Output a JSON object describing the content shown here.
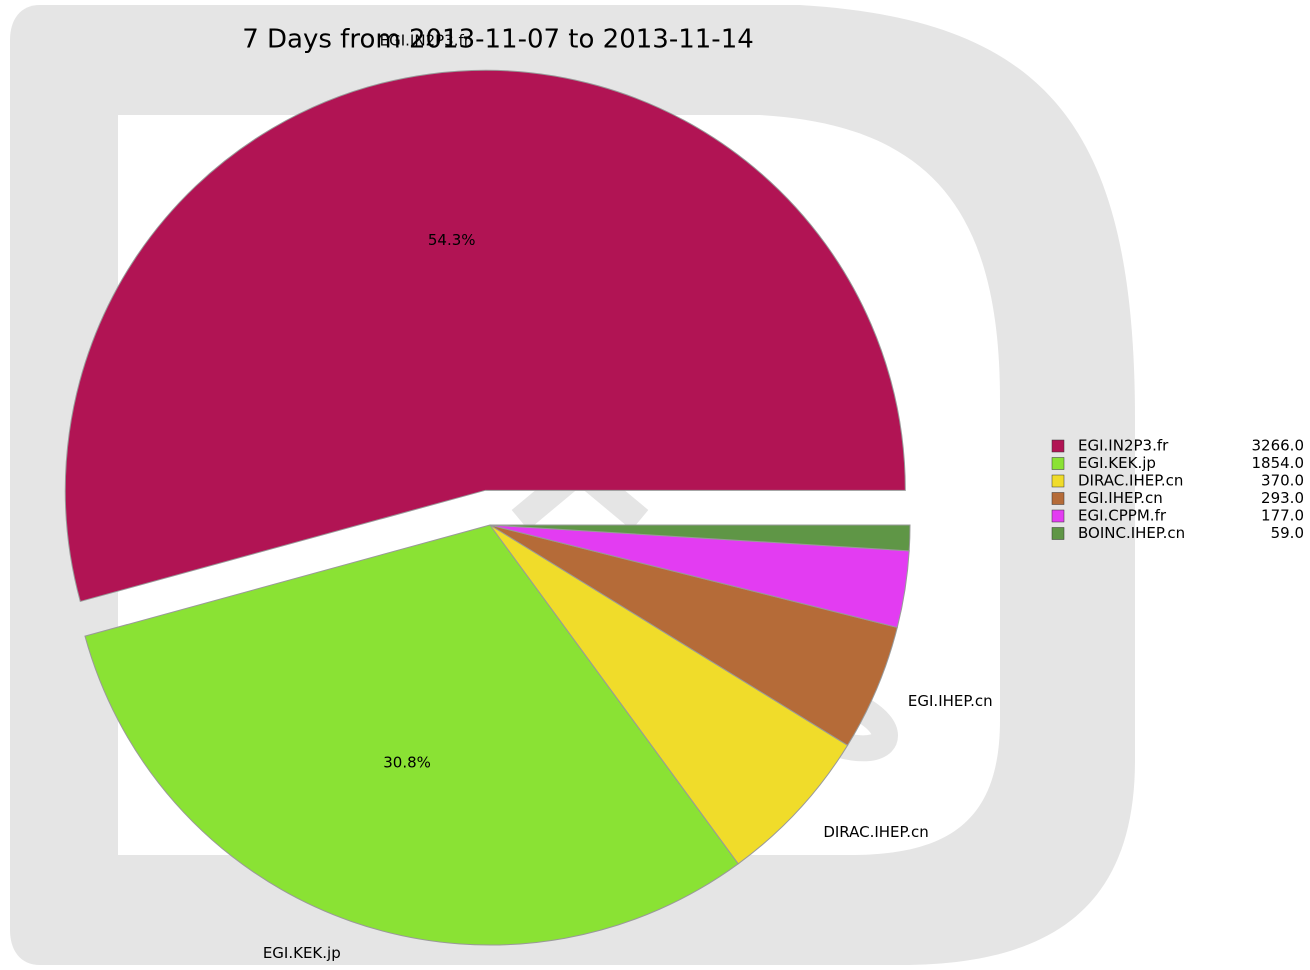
{
  "chart_data": {
    "type": "pie",
    "subtitle": "7 Days from 2013-11-07 to 2013-11-14",
    "categories": [
      "EGI.IN2P3.fr",
      "EGI.KEK.jp",
      "DIRAC.IHEP.cn",
      "EGI.IHEP.cn",
      "EGI.CPPM.fr",
      "BOINC.IHEP.cn"
    ],
    "values": [
      3266,
      1854,
      370,
      293,
      177,
      59
    ],
    "value_labels": [
      "3266.0",
      "1854.0",
      "370.0",
      "293.0",
      "177.0",
      "59.0"
    ],
    "percent_labels": [
      "54.3%",
      "30.8%",
      null,
      null,
      null,
      null
    ],
    "colors": [
      "#b11454",
      "#8ae234",
      "#f0dc2a",
      "#b56b38",
      "#e33cf2",
      "#5f9646"
    ],
    "exploded": [
      true,
      false,
      false,
      false,
      false,
      false
    ],
    "legend": "right"
  }
}
